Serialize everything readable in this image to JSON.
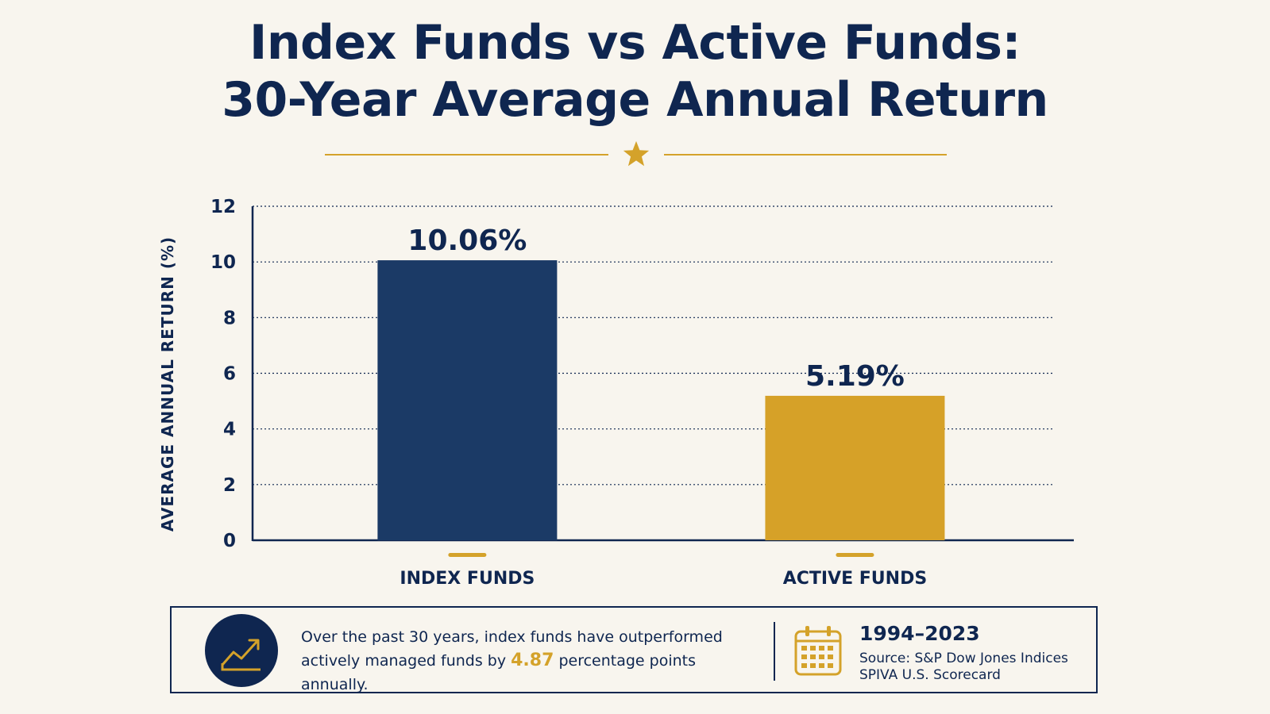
{
  "title": {
    "line1": "Index Funds vs Active Funds:",
    "line2": "30-Year Average Annual Return"
  },
  "colors": {
    "navy": "#1b3a66",
    "gold": "#d6a128",
    "text": "#0f2650",
    "background": "#f8f5ee"
  },
  "chart_data": {
    "type": "bar",
    "title": "Index Funds vs Active Funds: 30-Year Average Annual Return",
    "categories": [
      "INDEX FUNDS",
      "ACTIVE FUNDS"
    ],
    "values": [
      10.06,
      5.19
    ],
    "data_labels": [
      "10.06%",
      "5.19%"
    ],
    "bar_colors": [
      "#1b3a66",
      "#d6a128"
    ],
    "xlabel": "",
    "ylabel": "AVERAGE ANNUAL RETURN (%)",
    "ylim": [
      0,
      12
    ],
    "yticks": [
      0,
      2,
      4,
      6,
      8,
      10,
      12
    ],
    "grid": true
  },
  "info": {
    "icon": "trend-up-icon",
    "message_part1": "Over the past 30 years, index funds have outperformed actively managed funds by ",
    "highlight": "4.87",
    "message_part2": " percentage points annually.",
    "calendar_icon": "calendar-icon",
    "years": "1994–2023",
    "source_line1": "Source: S&P Dow Jones Indices",
    "source_line2": "SPIVA U.S. Scorecard"
  }
}
